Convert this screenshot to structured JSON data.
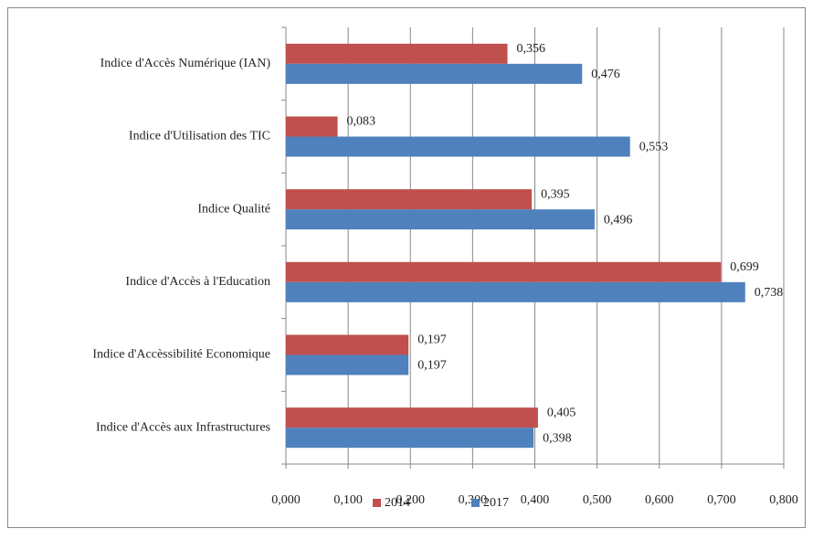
{
  "chart_data": {
    "type": "hbar",
    "categories": [
      "Indice d'Accès Numérique (IAN)",
      "Indice d'Utilisation des TIC",
      "Indice Qualité",
      "Indice d'Accès à l'Education",
      "Indice d'Accèssibilité Economique",
      "Indice d'Accès aux Infrastructures"
    ],
    "series": [
      {
        "name": "2014",
        "color": "#c0504d",
        "values": [
          0.356,
          0.083,
          0.395,
          0.699,
          0.197,
          0.405
        ],
        "value_labels": [
          "0,356",
          "0,083",
          "0,395",
          "0,699",
          "0,197",
          "0,405"
        ]
      },
      {
        "name": "2017",
        "color": "#4f81bd",
        "values": [
          0.476,
          0.553,
          0.496,
          0.738,
          0.197,
          0.398
        ],
        "value_labels": [
          "0,476",
          "0,553",
          "0,496",
          "0,738",
          "0,197",
          "0,398"
        ]
      }
    ],
    "xlim": [
      0,
      0.8
    ],
    "xticks": [
      {
        "value": 0,
        "label": "0,000"
      },
      {
        "value": 0.1,
        "label": "0,100"
      },
      {
        "value": 0.2,
        "label": "0,200"
      },
      {
        "value": 0.3,
        "label": "0,300"
      },
      {
        "value": 0.4,
        "label": "0,400"
      },
      {
        "value": 0.5,
        "label": "0,500"
      },
      {
        "value": 0.6,
        "label": "0,600"
      },
      {
        "value": 0.7,
        "label": "0,700"
      },
      {
        "value": 0.8,
        "label": "0,800"
      }
    ],
    "grid": true,
    "legend": "bottom"
  }
}
